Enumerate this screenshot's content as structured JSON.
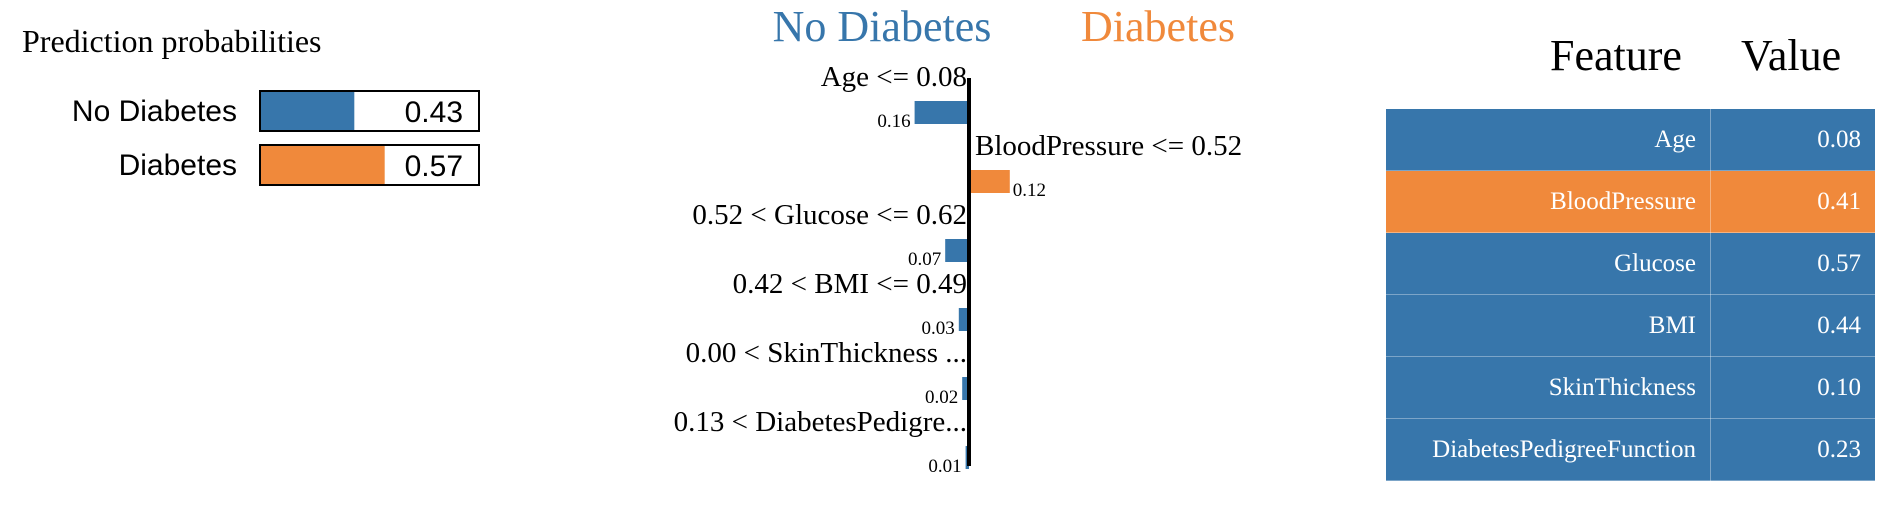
{
  "chart_data": [
    {
      "type": "bar",
      "title": "Prediction probabilities",
      "categories": [
        "No Diabetes",
        "Diabetes"
      ],
      "values": [
        0.43,
        0.57
      ],
      "colors": [
        "#3776ab",
        "#f0893b"
      ],
      "xlim": [
        0,
        1
      ]
    },
    {
      "type": "bar",
      "orientation": "horizontal",
      "class_labels": {
        "negative": "No Diabetes",
        "positive": "Diabetes"
      },
      "categories": [
        "Age <= 0.08",
        "BloodPressure <= 0.52",
        "0.52 < Glucose <= 0.62",
        "0.42 < BMI <= 0.49",
        "0.00 < SkinThickness ...",
        "0.13 < DiabetesPedigre..."
      ],
      "values": [
        -0.16,
        0.12,
        -0.07,
        -0.03,
        -0.02,
        -0.01
      ],
      "value_labels": [
        "0.16",
        "0.12",
        "0.07",
        "0.03",
        "0.02",
        "0.01"
      ],
      "colors": {
        "negative": "#3776ab",
        "positive": "#f0893b"
      }
    },
    {
      "type": "table",
      "columns": [
        "Feature",
        "Value"
      ],
      "rows": [
        {
          "feature": "Age",
          "value": "0.08",
          "highlight": false
        },
        {
          "feature": "BloodPressure",
          "value": "0.41",
          "highlight": true
        },
        {
          "feature": "Glucose",
          "value": "0.57",
          "highlight": false
        },
        {
          "feature": "BMI",
          "value": "0.44",
          "highlight": false
        },
        {
          "feature": "SkinThickness",
          "value": "0.10",
          "highlight": false
        },
        {
          "feature": "DiabetesPedigreeFunction",
          "value": "0.23",
          "highlight": false
        }
      ],
      "colors": {
        "row": "#3776ab",
        "highlight": "#f0893b"
      }
    }
  ]
}
